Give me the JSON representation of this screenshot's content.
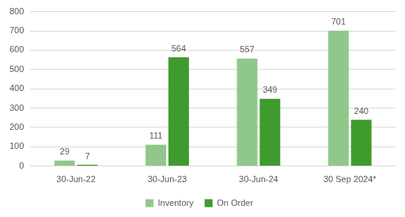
{
  "chart_data": {
    "type": "bar",
    "categories": [
      "30-Jun-22",
      "30-Jun-23",
      "30-Jun-24",
      "30 Sep 2024*"
    ],
    "series": [
      {
        "name": "Inventory",
        "color": "#8fc88a",
        "values": [
          29,
          111,
          557,
          701
        ]
      },
      {
        "name": "On Order",
        "color": "#3f9b2e",
        "values": [
          7,
          564,
          349,
          240
        ]
      }
    ],
    "ylim": [
      0,
      800
    ],
    "yticks": [
      0,
      100,
      200,
      300,
      400,
      500,
      600,
      700,
      800
    ],
    "grid": true,
    "legend": "bottom",
    "data_labels": true
  }
}
